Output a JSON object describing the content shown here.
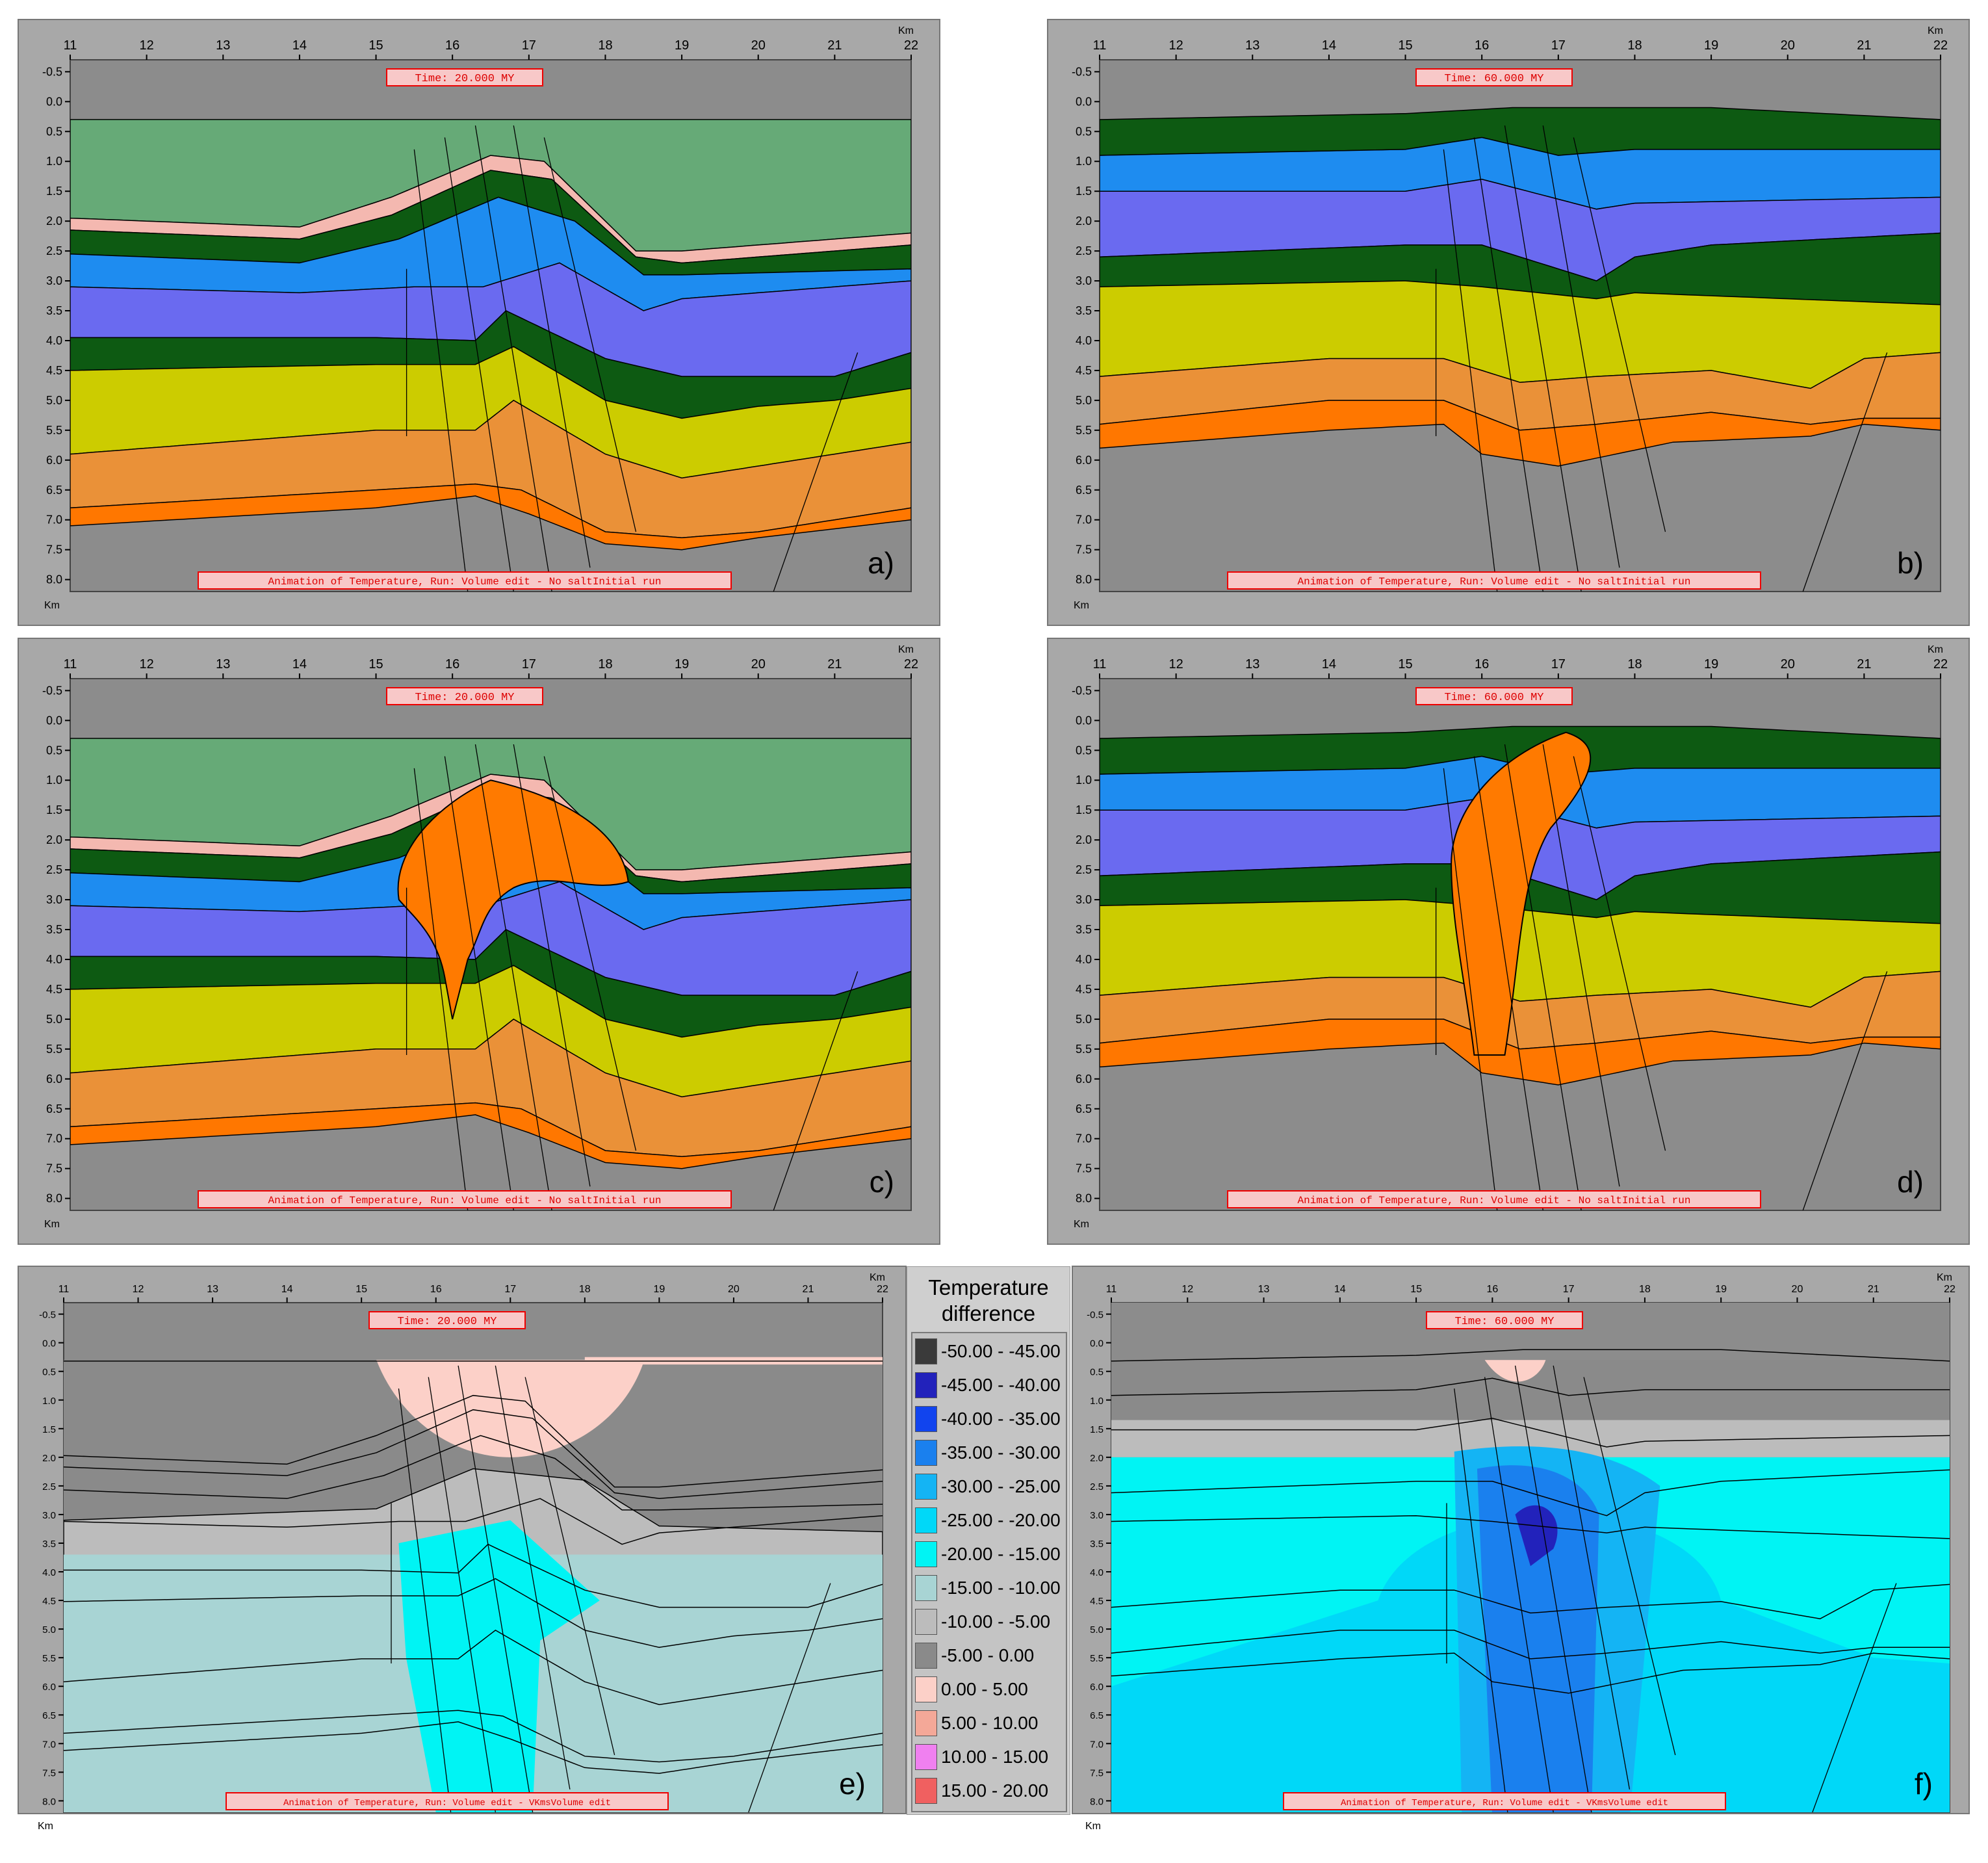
{
  "x_ticks": [
    "11",
    "12",
    "13",
    "14",
    "15",
    "16",
    "17",
    "18",
    "19",
    "20",
    "21",
    "22"
  ],
  "y_ticks": [
    "-0.5",
    "0.0",
    "0.5",
    "1.0",
    "1.5",
    "2.0",
    "2.5",
    "3.0",
    "3.5",
    "4.0",
    "4.5",
    "5.0",
    "5.5",
    "6.0",
    "6.5",
    "7.0",
    "7.5",
    "8.0"
  ],
  "unit_label": "Km",
  "panels": [
    {
      "id": "a",
      "label": "a)",
      "time": "Time:    20.000 MY",
      "caption": "Animation of Temperature, Run: Volume edit - No saltInitial run",
      "mode": "layers",
      "salt": "none"
    },
    {
      "id": "b",
      "label": "b)",
      "time": "Time:    60.000 MY",
      "caption": "Animation of Temperature, Run: Volume edit - No saltInitial run",
      "mode": "layers",
      "salt": "none"
    },
    {
      "id": "c",
      "label": "c)",
      "time": "Time:    20.000 MY",
      "caption": "Animation of Temperature, Run: Volume edit - No saltInitial run",
      "mode": "layers",
      "salt": "mushroom"
    },
    {
      "id": "d",
      "label": "d)",
      "time": "Time:    60.000 MY",
      "caption": "Animation of Temperature, Run: Volume edit - No saltInitial run",
      "mode": "layers",
      "salt": "wall"
    },
    {
      "id": "e",
      "label": "e)",
      "time": "Time:    20.000 MY",
      "caption": "Animation of Temperature, Run: Volume edit - VKmsVolume edit",
      "mode": "diff"
    },
    {
      "id": "f",
      "label": "f)",
      "time": "Time:    60.000 MY",
      "caption": "Animation of Temperature, Run: Volume edit - VKmsVolume edit",
      "mode": "diff"
    }
  ],
  "layer_colors": {
    "background": "#8c8c8c",
    "frame": "#a8a8a8",
    "green_light": "#66aa77",
    "pink": "#f4b8b0",
    "green_dark": "#0d5a12",
    "blue": "#1e8cf0",
    "violet": "#6a6af0",
    "yellow": "#cccc00",
    "orange_light": "#ea9138",
    "orange": "#ff7700",
    "salt": "#ff7a00"
  },
  "legend": {
    "title": "Temperature difference",
    "items": [
      {
        "label": "-50.00 - -45.00",
        "color": "#3a3a3a"
      },
      {
        "label": "-45.00 - -40.00",
        "color": "#2222bb"
      },
      {
        "label": "-40.00 - -35.00",
        "color": "#1144ee"
      },
      {
        "label": "-35.00 - -30.00",
        "color": "#1a80ee"
      },
      {
        "label": "-30.00 - -25.00",
        "color": "#14b4f4"
      },
      {
        "label": "-25.00 - -20.00",
        "color": "#00d8f8"
      },
      {
        "label": "-20.00 - -15.00",
        "color": "#00f4f4"
      },
      {
        "label": "-15.00 - -10.00",
        "color": "#a8d4d4"
      },
      {
        "label": "-10.00 - -5.00",
        "color": "#bcbcbc"
      },
      {
        "label": "-5.00 - 0.00",
        "color": "#8a8a8a"
      },
      {
        "label": "0.00 - 5.00",
        "color": "#fcd0c8"
      },
      {
        "label": "5.00 - 10.00",
        "color": "#f4a898"
      },
      {
        "label": "10.00 - 15.00",
        "color": "#f080f0"
      },
      {
        "label": "15.00 - 20.00",
        "color": "#f06060"
      }
    ]
  }
}
